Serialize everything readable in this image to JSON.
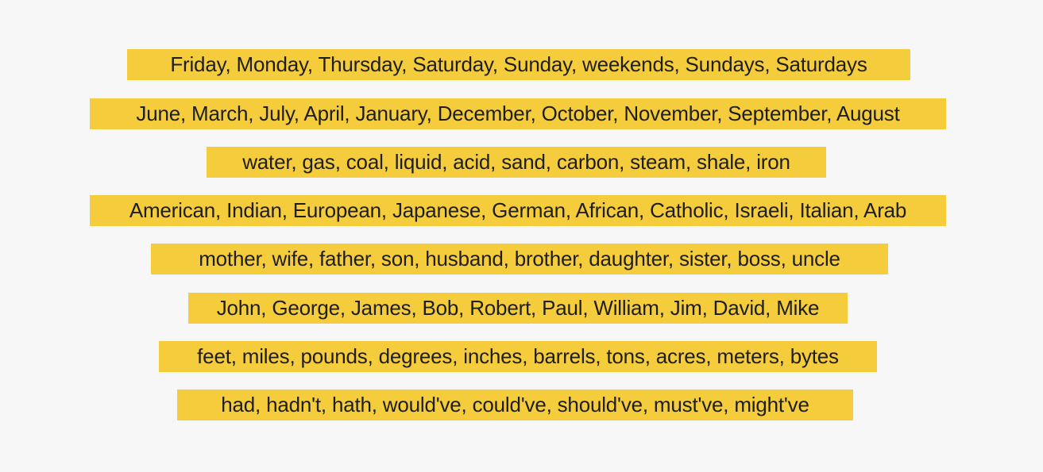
{
  "rows": [
    {
      "text": "Friday, Monday, Thursday, Saturday, Sunday, weekends, Sundays, Saturdays"
    },
    {
      "text": "June, March, July, April, January, December, October, November, September, August"
    },
    {
      "text": "water, gas, coal, liquid, acid, sand, carbon, steam, shale, iron"
    },
    {
      "text": "American, Indian, European, Japanese, German, African, Catholic, Israeli, Italian, Arab"
    },
    {
      "text": "mother, wife, father, son, husband, brother, daughter, sister, boss, uncle"
    },
    {
      "text": "John, George, James, Bob, Robert, Paul, William, Jim, David, Mike"
    },
    {
      "text": "feet, miles, pounds, degrees, inches, barrels, tons, acres, meters, bytes"
    },
    {
      "text": "had, hadn't, hath, would've, could've, should've, must've, might've"
    }
  ],
  "colors": {
    "background": "#f7f7f7",
    "highlight": "#f5cc3c",
    "text": "#1e1e1e"
  }
}
